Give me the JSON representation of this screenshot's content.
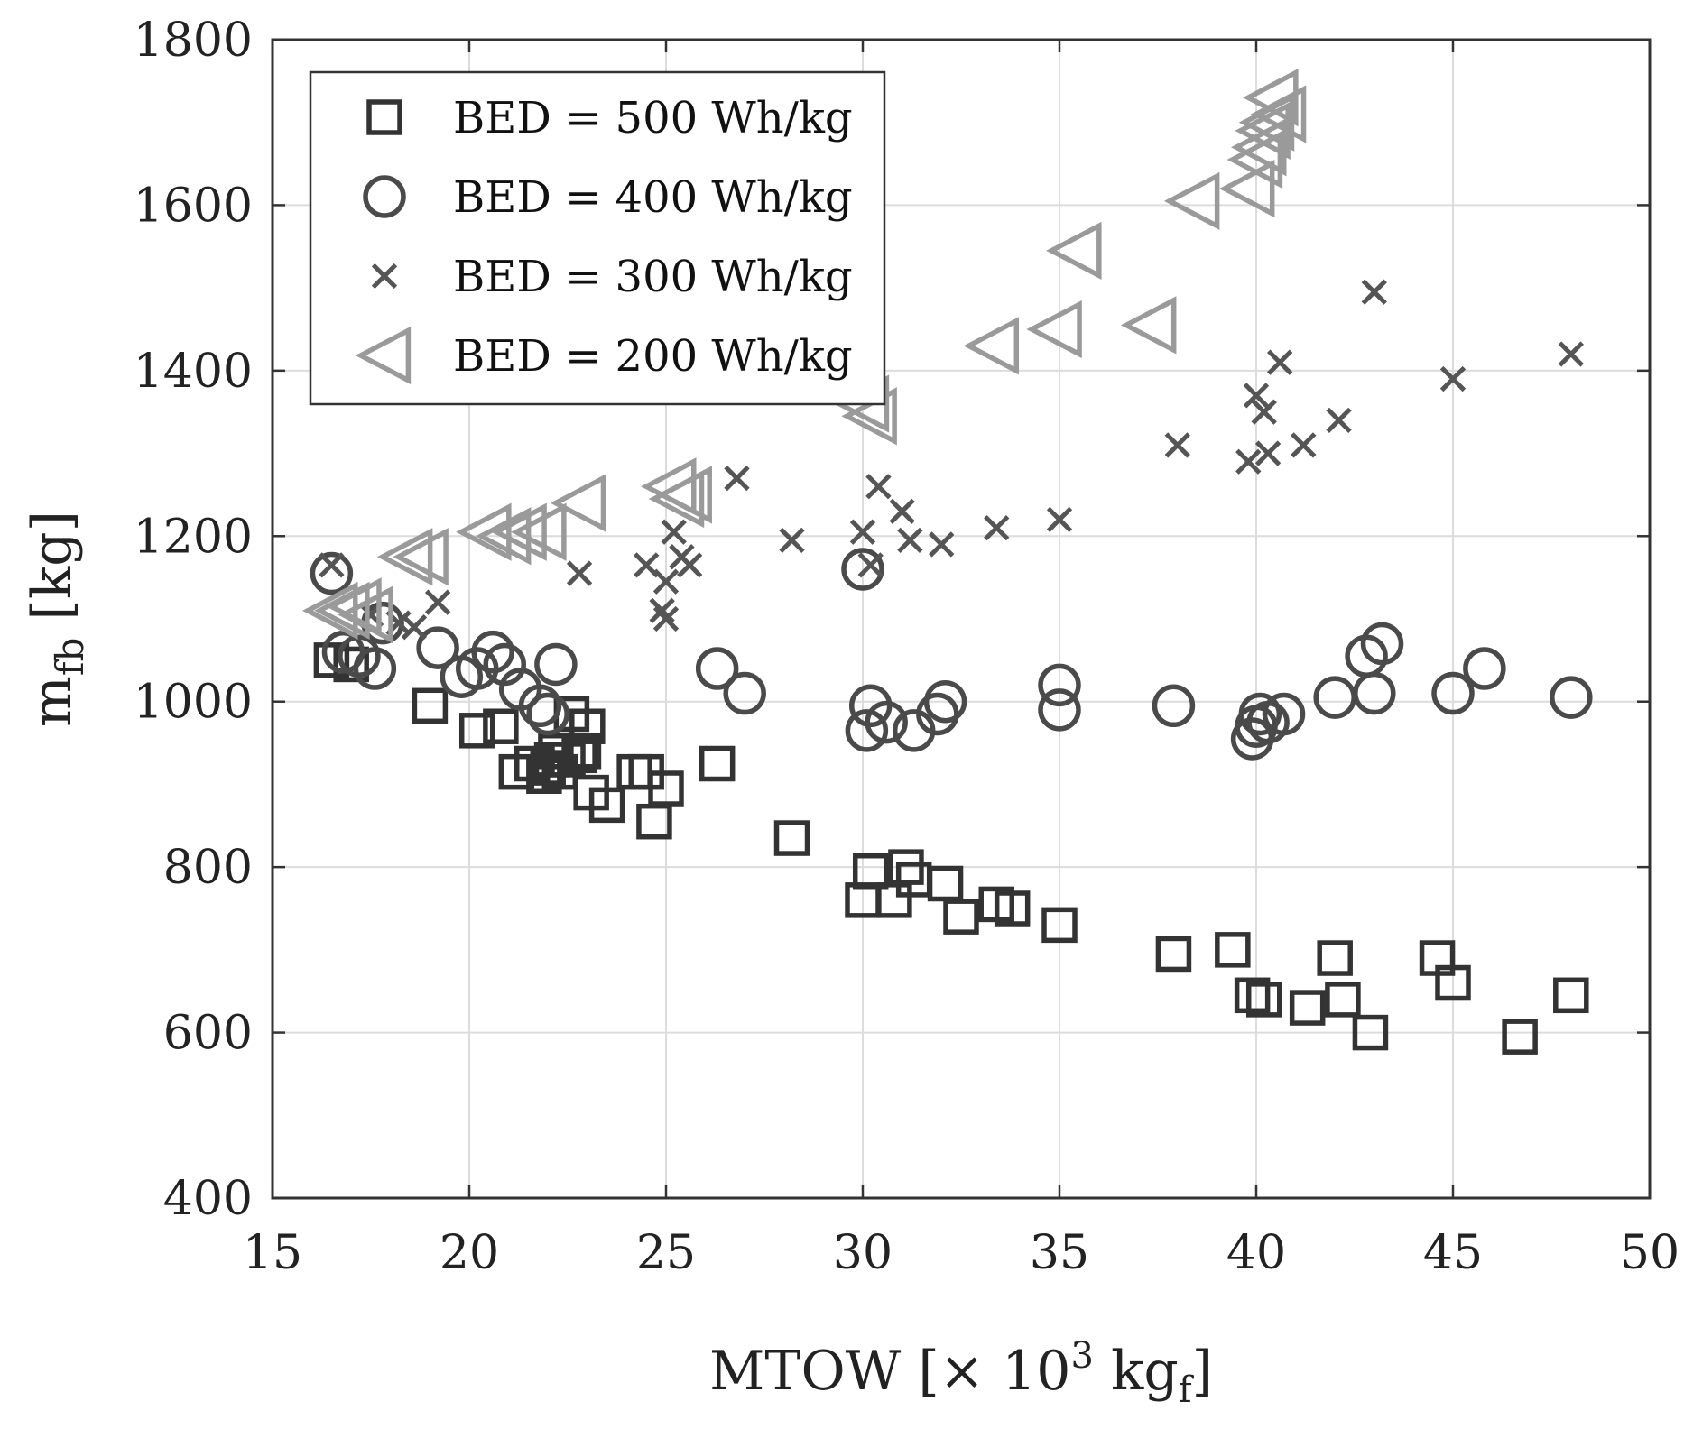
{
  "chart_data": {
    "type": "scatter",
    "title": "",
    "xlabel": "MTOW [× 10³ kgf]",
    "xlabel_parts": {
      "main": "MTOW [",
      "times": "×",
      "base": " 10",
      "exp": "3",
      "unit": " kg",
      "unit_sub": "f",
      "close": "]"
    },
    "ylabel": "m_fb [kg]",
    "ylabel_parts": {
      "main": "m",
      "sub": "fb",
      "unit": " [kg]"
    },
    "xlim": [
      15,
      50
    ],
    "ylim": [
      400,
      1800
    ],
    "xticks": [
      "15",
      "20",
      "25",
      "30",
      "35",
      "40",
      "45",
      "50"
    ],
    "yticks": [
      "400",
      "600",
      "800",
      "1000",
      "1200",
      "1400",
      "1600",
      "1800"
    ],
    "grid": true,
    "legend_position": "top-left",
    "series": [
      {
        "name": "BED = 500 Wh/kg",
        "marker": "square",
        "color": "#333333",
        "x": [
          16.5,
          17.0,
          19.0,
          20.2,
          20.8,
          21.2,
          21.6,
          21.9,
          22.0,
          22.1,
          22.2,
          22.3,
          22.5,
          22.6,
          22.8,
          22.9,
          23.0,
          23.1,
          23.5,
          24.2,
          24.5,
          24.7,
          25.0,
          26.3,
          28.2,
          30.0,
          30.2,
          30.8,
          31.1,
          31.3,
          32.1,
          32.5,
          33.4,
          33.8,
          35.0,
          37.9,
          39.4,
          39.9,
          40.2,
          41.3,
          42.0,
          42.2,
          42.9,
          44.6,
          45.0,
          46.7,
          48.0
        ],
        "y": [
          1050,
          1045,
          995,
          965,
          970,
          915,
          925,
          910,
          920,
          930,
          940,
          915,
          930,
          985,
          935,
          940,
          970,
          890,
          875,
          915,
          915,
          855,
          895,
          925,
          835,
          760,
          795,
          760,
          800,
          785,
          780,
          740,
          755,
          750,
          730,
          695,
          700,
          645,
          640,
          630,
          690,
          640,
          600,
          690,
          660,
          595,
          645
        ]
      },
      {
        "name": "BED = 400 Wh/kg",
        "marker": "circle",
        "color": "#4a4a4a",
        "x": [
          16.5,
          16.8,
          17.2,
          17.6,
          17.8,
          19.2,
          19.8,
          20.2,
          20.6,
          20.9,
          21.3,
          21.8,
          22.0,
          22.2,
          26.3,
          27.0,
          30.0,
          30.1,
          30.2,
          30.6,
          31.3,
          31.9,
          32.1,
          35.0,
          35.0,
          37.9,
          39.9,
          40.0,
          40.1,
          40.3,
          40.7,
          42.0,
          42.8,
          43.0,
          43.2,
          45.0,
          45.8,
          48.0
        ],
        "y": [
          1155,
          1060,
          1055,
          1040,
          1095,
          1065,
          1030,
          1040,
          1060,
          1045,
          1015,
          995,
          985,
          1045,
          1040,
          1010,
          1160,
          965,
          995,
          975,
          965,
          985,
          1000,
          1020,
          990,
          995,
          955,
          970,
          985,
          975,
          985,
          1005,
          1055,
          1010,
          1070,
          1010,
          1040,
          1005
        ]
      },
      {
        "name": "BED = 300 Wh/kg",
        "marker": "x",
        "color": "#555555",
        "x": [
          16.5,
          17.5,
          18.2,
          18.6,
          19.2,
          22.8,
          24.5,
          24.9,
          25.0,
          25.0,
          25.2,
          25.4,
          25.6,
          26.8,
          28.2,
          30.0,
          30.2,
          30.4,
          31.0,
          31.2,
          32.0,
          33.4,
          35.0,
          38.0,
          39.8,
          40.0,
          40.2,
          40.3,
          40.6,
          41.2,
          42.1,
          43.0,
          45.0,
          48.0
        ],
        "y": [
          1165,
          1105,
          1095,
          1090,
          1120,
          1155,
          1165,
          1110,
          1100,
          1145,
          1205,
          1175,
          1165,
          1270,
          1195,
          1205,
          1165,
          1260,
          1230,
          1195,
          1190,
          1210,
          1220,
          1310,
          1290,
          1370,
          1350,
          1300,
          1410,
          1310,
          1340,
          1495,
          1390,
          1420
        ]
      },
      {
        "name": "BED = 200 Wh/kg",
        "marker": "triangle-left",
        "color": "#9a9a9a",
        "x": [
          16.5,
          16.8,
          17.1,
          17.4,
          18.4,
          18.8,
          20.4,
          20.9,
          21.3,
          21.8,
          22.8,
          25.1,
          25.3,
          25.5,
          30.0,
          30.2,
          33.3,
          34.9,
          35.4,
          37.3,
          38.4,
          39.8,
          40.0,
          40.1,
          40.2,
          40.3,
          40.4,
          40.6
        ],
        "y": [
          1110,
          1110,
          1115,
          1105,
          1175,
          1175,
          1205,
          1200,
          1205,
          1205,
          1240,
          1260,
          1245,
          1250,
          1360,
          1345,
          1430,
          1450,
          1545,
          1455,
          1605,
          1620,
          1655,
          1670,
          1690,
          1700,
          1730,
          1710
        ]
      }
    ]
  }
}
